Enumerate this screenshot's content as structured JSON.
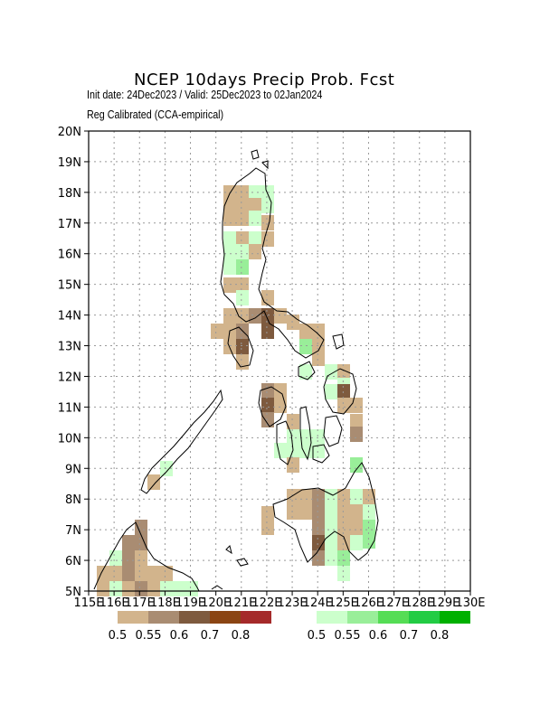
{
  "header": {
    "title": "NCEP 10days Precip Prob. Fcst",
    "init_line": "Init date: 24Dec2023 / Valid: 25Dec2023 to 02Jan2024",
    "method_line": "Reg Calibrated (CCA-empirical)"
  },
  "map": {
    "lon_range": [
      115,
      130
    ],
    "lat_range": [
      5,
      20
    ],
    "grid": true,
    "grid_style": "dotted",
    "lon_tick_labels": [
      "115E",
      "116E",
      "117E",
      "118E",
      "119E",
      "120E",
      "121E",
      "122E",
      "123E",
      "124E",
      "125E",
      "126E",
      "127E",
      "128E",
      "129E",
      "130E"
    ],
    "lat_tick_labels": [
      "5N",
      "6N",
      "7N",
      "8N",
      "9N",
      "10N",
      "11N",
      "12N",
      "13N",
      "14N",
      "15N",
      "16N",
      "17N",
      "18N",
      "19N",
      "20N"
    ]
  },
  "legend": {
    "dry": {
      "labels": [
        "0.5",
        "0.55",
        "0.6",
        "0.7",
        "0.8"
      ],
      "colors": [
        "#d2b48c",
        "#a98c72",
        "#7e5a3e",
        "#8b4513",
        "#a52a2a"
      ]
    },
    "wet": {
      "labels": [
        "0.5",
        "0.55",
        "0.6",
        "0.7",
        "0.8"
      ],
      "colors": [
        "#ccffcc",
        "#99ee99",
        "#55dd55",
        "#22cc44",
        "#00b000"
      ]
    }
  }
}
